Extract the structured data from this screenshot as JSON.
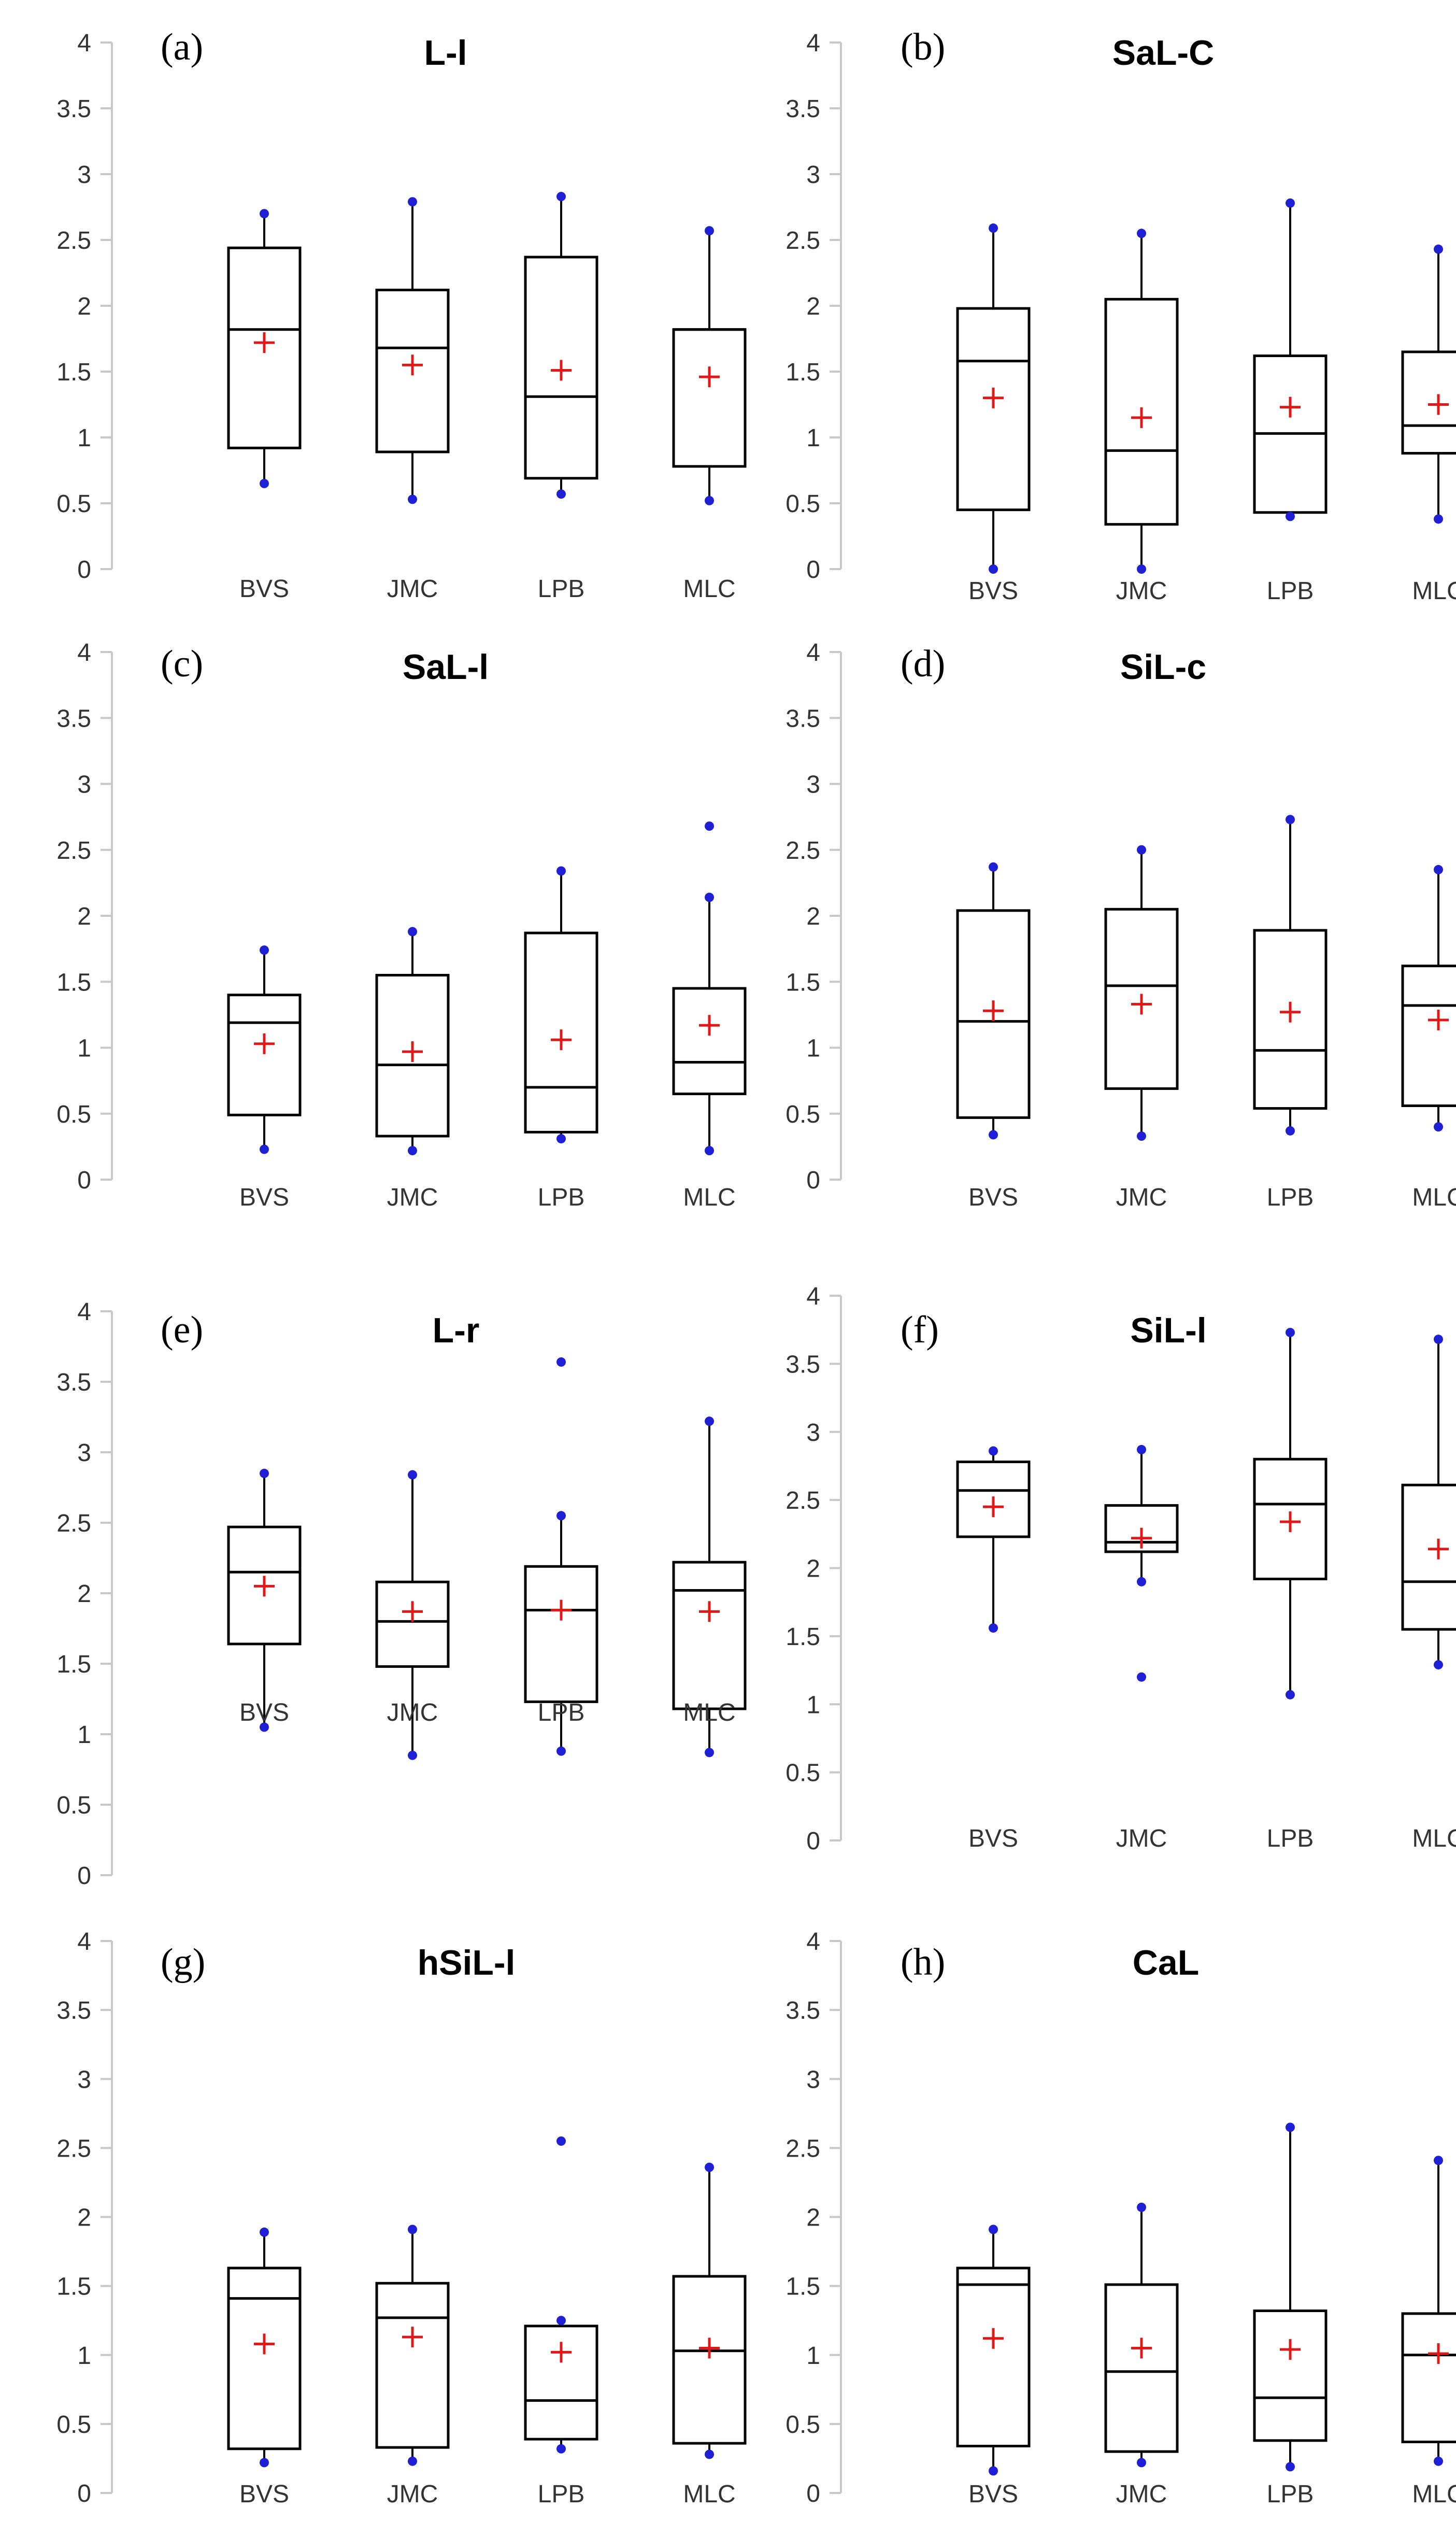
{
  "colors": {
    "axis": "#c8c8c8",
    "box": "#000000",
    "whisker_end": "#1f1fd6",
    "mean": "#e01818"
  },
  "chart_data": [
    {
      "type": "box",
      "panel_label": "(a)",
      "title": "L-l",
      "categories": [
        "BVS",
        "JMC",
        "LPB",
        "MLC"
      ],
      "ylim": [
        0,
        4
      ],
      "yticks": [
        "0",
        "0.5",
        "1",
        "1.5",
        "2",
        "2.5",
        "3",
        "3.5",
        "4"
      ],
      "boxes": [
        {
          "min": 0.65,
          "q1": 0.92,
          "median": 1.82,
          "q3": 2.44,
          "max": 2.7,
          "mean": 1.72,
          "outliers": []
        },
        {
          "min": 0.53,
          "q1": 0.89,
          "median": 1.68,
          "q3": 2.12,
          "max": 2.79,
          "mean": 1.55,
          "outliers": []
        },
        {
          "min": 0.57,
          "q1": 0.69,
          "median": 1.31,
          "q3": 2.37,
          "max": 2.83,
          "mean": 1.51,
          "outliers": []
        },
        {
          "min": 0.52,
          "q1": 0.78,
          "median": 1.82,
          "q3": 1.82,
          "max": 2.57,
          "mean": 1.46,
          "outliers": []
        }
      ]
    },
    {
      "type": "box",
      "panel_label": "(b)",
      "title": "SaL-C",
      "categories": [
        "BVS",
        "JMC",
        "LPB",
        "MLC"
      ],
      "ylim": [
        0,
        4
      ],
      "yticks": [
        "0",
        "0.5",
        "1",
        "1.5",
        "2",
        "2.5",
        "3",
        "3.5",
        "4"
      ],
      "boxes": [
        {
          "min": 0.0,
          "q1": 0.45,
          "median": 1.58,
          "q3": 1.98,
          "max": 2.59,
          "mean": 1.3,
          "outliers": []
        },
        {
          "min": 0.0,
          "q1": 0.34,
          "median": 0.9,
          "q3": 2.05,
          "max": 2.55,
          "mean": 1.15,
          "outliers": []
        },
        {
          "min": 0.4,
          "q1": 0.43,
          "median": 1.03,
          "q3": 1.62,
          "max": 2.78,
          "mean": 1.23,
          "outliers": []
        },
        {
          "min": 0.38,
          "q1": 0.88,
          "median": 1.09,
          "q3": 1.65,
          "max": 2.43,
          "mean": 1.25,
          "outliers": []
        }
      ]
    },
    {
      "type": "box",
      "panel_label": "(c)",
      "title": "SaL-l",
      "categories": [
        "BVS",
        "JMC",
        "LPB",
        "MLC"
      ],
      "ylim": [
        0,
        4
      ],
      "yticks": [
        "0",
        "0.5",
        "1",
        "1.5",
        "2",
        "2.5",
        "3",
        "3.5",
        "4"
      ],
      "boxes": [
        {
          "min": 0.23,
          "q1": 0.49,
          "median": 1.19,
          "q3": 1.4,
          "max": 1.74,
          "mean": 1.03,
          "outliers": []
        },
        {
          "min": 0.22,
          "q1": 0.33,
          "median": 0.87,
          "q3": 1.55,
          "max": 1.88,
          "mean": 0.97,
          "outliers": []
        },
        {
          "min": 0.31,
          "q1": 0.36,
          "median": 0.7,
          "q3": 1.87,
          "max": 2.34,
          "mean": 1.06,
          "outliers": []
        },
        {
          "min": 0.22,
          "q1": 0.65,
          "median": 0.89,
          "q3": 1.45,
          "max": 2.14,
          "mean": 1.17,
          "outliers": [
            2.68
          ]
        }
      ]
    },
    {
      "type": "box",
      "panel_label": "(d)",
      "title": "SiL-c",
      "categories": [
        "BVS",
        "JMC",
        "LPB",
        "MLC"
      ],
      "ylim": [
        0,
        4
      ],
      "yticks": [
        "0",
        "0.5",
        "1",
        "1.5",
        "2",
        "2.5",
        "3",
        "3.5",
        "4"
      ],
      "boxes": [
        {
          "min": 0.34,
          "q1": 0.47,
          "median": 1.2,
          "q3": 2.04,
          "max": 2.37,
          "mean": 1.28,
          "outliers": []
        },
        {
          "min": 0.33,
          "q1": 0.69,
          "median": 1.47,
          "q3": 2.05,
          "max": 2.5,
          "mean": 1.33,
          "outliers": []
        },
        {
          "min": 0.37,
          "q1": 0.54,
          "median": 0.98,
          "q3": 1.89,
          "max": 2.73,
          "mean": 1.27,
          "outliers": []
        },
        {
          "min": 0.4,
          "q1": 0.56,
          "median": 1.32,
          "q3": 1.62,
          "max": 2.35,
          "mean": 1.21,
          "outliers": []
        }
      ]
    },
    {
      "type": "box",
      "panel_label": "(e)",
      "title": "L-r",
      "categories": [
        "BVS",
        "JMC",
        "LPB",
        "MLC"
      ],
      "ylim": [
        0,
        4
      ],
      "yticks": [
        "0",
        "0.5",
        "1",
        "1.5",
        "2",
        "2.5",
        "3",
        "3.5",
        "4"
      ],
      "boxes": [
        {
          "min": 1.05,
          "q1": 1.64,
          "median": 2.15,
          "q3": 2.47,
          "max": 2.85,
          "mean": 2.05,
          "outliers": []
        },
        {
          "min": 0.85,
          "q1": 1.48,
          "median": 1.8,
          "q3": 2.08,
          "max": 2.84,
          "mean": 1.87,
          "outliers": []
        },
        {
          "min": 0.88,
          "q1": 1.23,
          "median": 1.88,
          "q3": 2.19,
          "max": 2.55,
          "mean": 1.88,
          "outliers": [
            3.64
          ]
        },
        {
          "min": 0.87,
          "q1": 1.18,
          "median": 2.02,
          "q3": 2.22,
          "max": 3.22,
          "mean": 1.87,
          "outliers": []
        }
      ]
    },
    {
      "type": "box",
      "panel_label": "(f)",
      "title": "SiL-l",
      "categories": [
        "BVS",
        "JMC",
        "LPB",
        "MLC"
      ],
      "ylim": [
        0,
        4
      ],
      "yticks": [
        "0",
        "0.5",
        "1",
        "1.5",
        "2",
        "2.5",
        "3",
        "3.5",
        "4"
      ],
      "boxes": [
        {
          "min": 1.56,
          "q1": 2.23,
          "median": 2.57,
          "q3": 2.78,
          "max": 2.86,
          "mean": 2.45,
          "outliers": []
        },
        {
          "min": 1.9,
          "q1": 2.12,
          "median": 2.19,
          "q3": 2.46,
          "max": 2.87,
          "mean": 2.22,
          "outliers": [
            1.2
          ]
        },
        {
          "min": 1.07,
          "q1": 1.92,
          "median": 2.47,
          "q3": 2.8,
          "max": 3.73,
          "mean": 2.34,
          "outliers": []
        },
        {
          "min": 1.29,
          "q1": 1.55,
          "median": 1.9,
          "q3": 2.61,
          "max": 3.68,
          "mean": 2.14,
          "outliers": []
        }
      ]
    },
    {
      "type": "box",
      "panel_label": "(g)",
      "title": "hSiL-l",
      "categories": [
        "BVS",
        "JMC",
        "LPB",
        "MLC"
      ],
      "ylim": [
        0,
        4
      ],
      "yticks": [
        "0",
        "0.5",
        "1",
        "1.5",
        "2",
        "2.5",
        "3",
        "3.5",
        "4"
      ],
      "boxes": [
        {
          "min": 0.22,
          "q1": 0.32,
          "median": 1.41,
          "q3": 1.63,
          "max": 1.89,
          "mean": 1.08,
          "outliers": []
        },
        {
          "min": 0.23,
          "q1": 0.33,
          "median": 1.27,
          "q3": 1.52,
          "max": 1.91,
          "mean": 1.13,
          "outliers": []
        },
        {
          "min": 0.32,
          "q1": 0.39,
          "median": 0.67,
          "q3": 1.21,
          "max": 1.25,
          "mean": 1.02,
          "outliers": [
            2.55
          ]
        },
        {
          "min": 0.28,
          "q1": 0.36,
          "median": 1.03,
          "q3": 1.57,
          "max": 2.36,
          "mean": 1.05,
          "outliers": []
        }
      ]
    },
    {
      "type": "box",
      "panel_label": "(h)",
      "title": "CaL",
      "categories": [
        "BVS",
        "JMC",
        "LPB",
        "MLC"
      ],
      "ylim": [
        0,
        4
      ],
      "yticks": [
        "0",
        "0.5",
        "1",
        "1.5",
        "2",
        "2.5",
        "3",
        "3.5",
        "4"
      ],
      "boxes": [
        {
          "min": 0.16,
          "q1": 0.34,
          "median": 1.51,
          "q3": 1.63,
          "max": 1.91,
          "mean": 1.12,
          "outliers": []
        },
        {
          "min": 0.22,
          "q1": 0.3,
          "median": 0.88,
          "q3": 1.51,
          "max": 2.07,
          "mean": 1.05,
          "outliers": []
        },
        {
          "min": 0.19,
          "q1": 0.38,
          "median": 0.69,
          "q3": 1.32,
          "max": 2.65,
          "mean": 1.04,
          "outliers": []
        },
        {
          "min": 0.23,
          "q1": 0.37,
          "median": 1.0,
          "q3": 1.3,
          "max": 2.41,
          "mean": 1.01,
          "outliers": []
        }
      ]
    }
  ]
}
